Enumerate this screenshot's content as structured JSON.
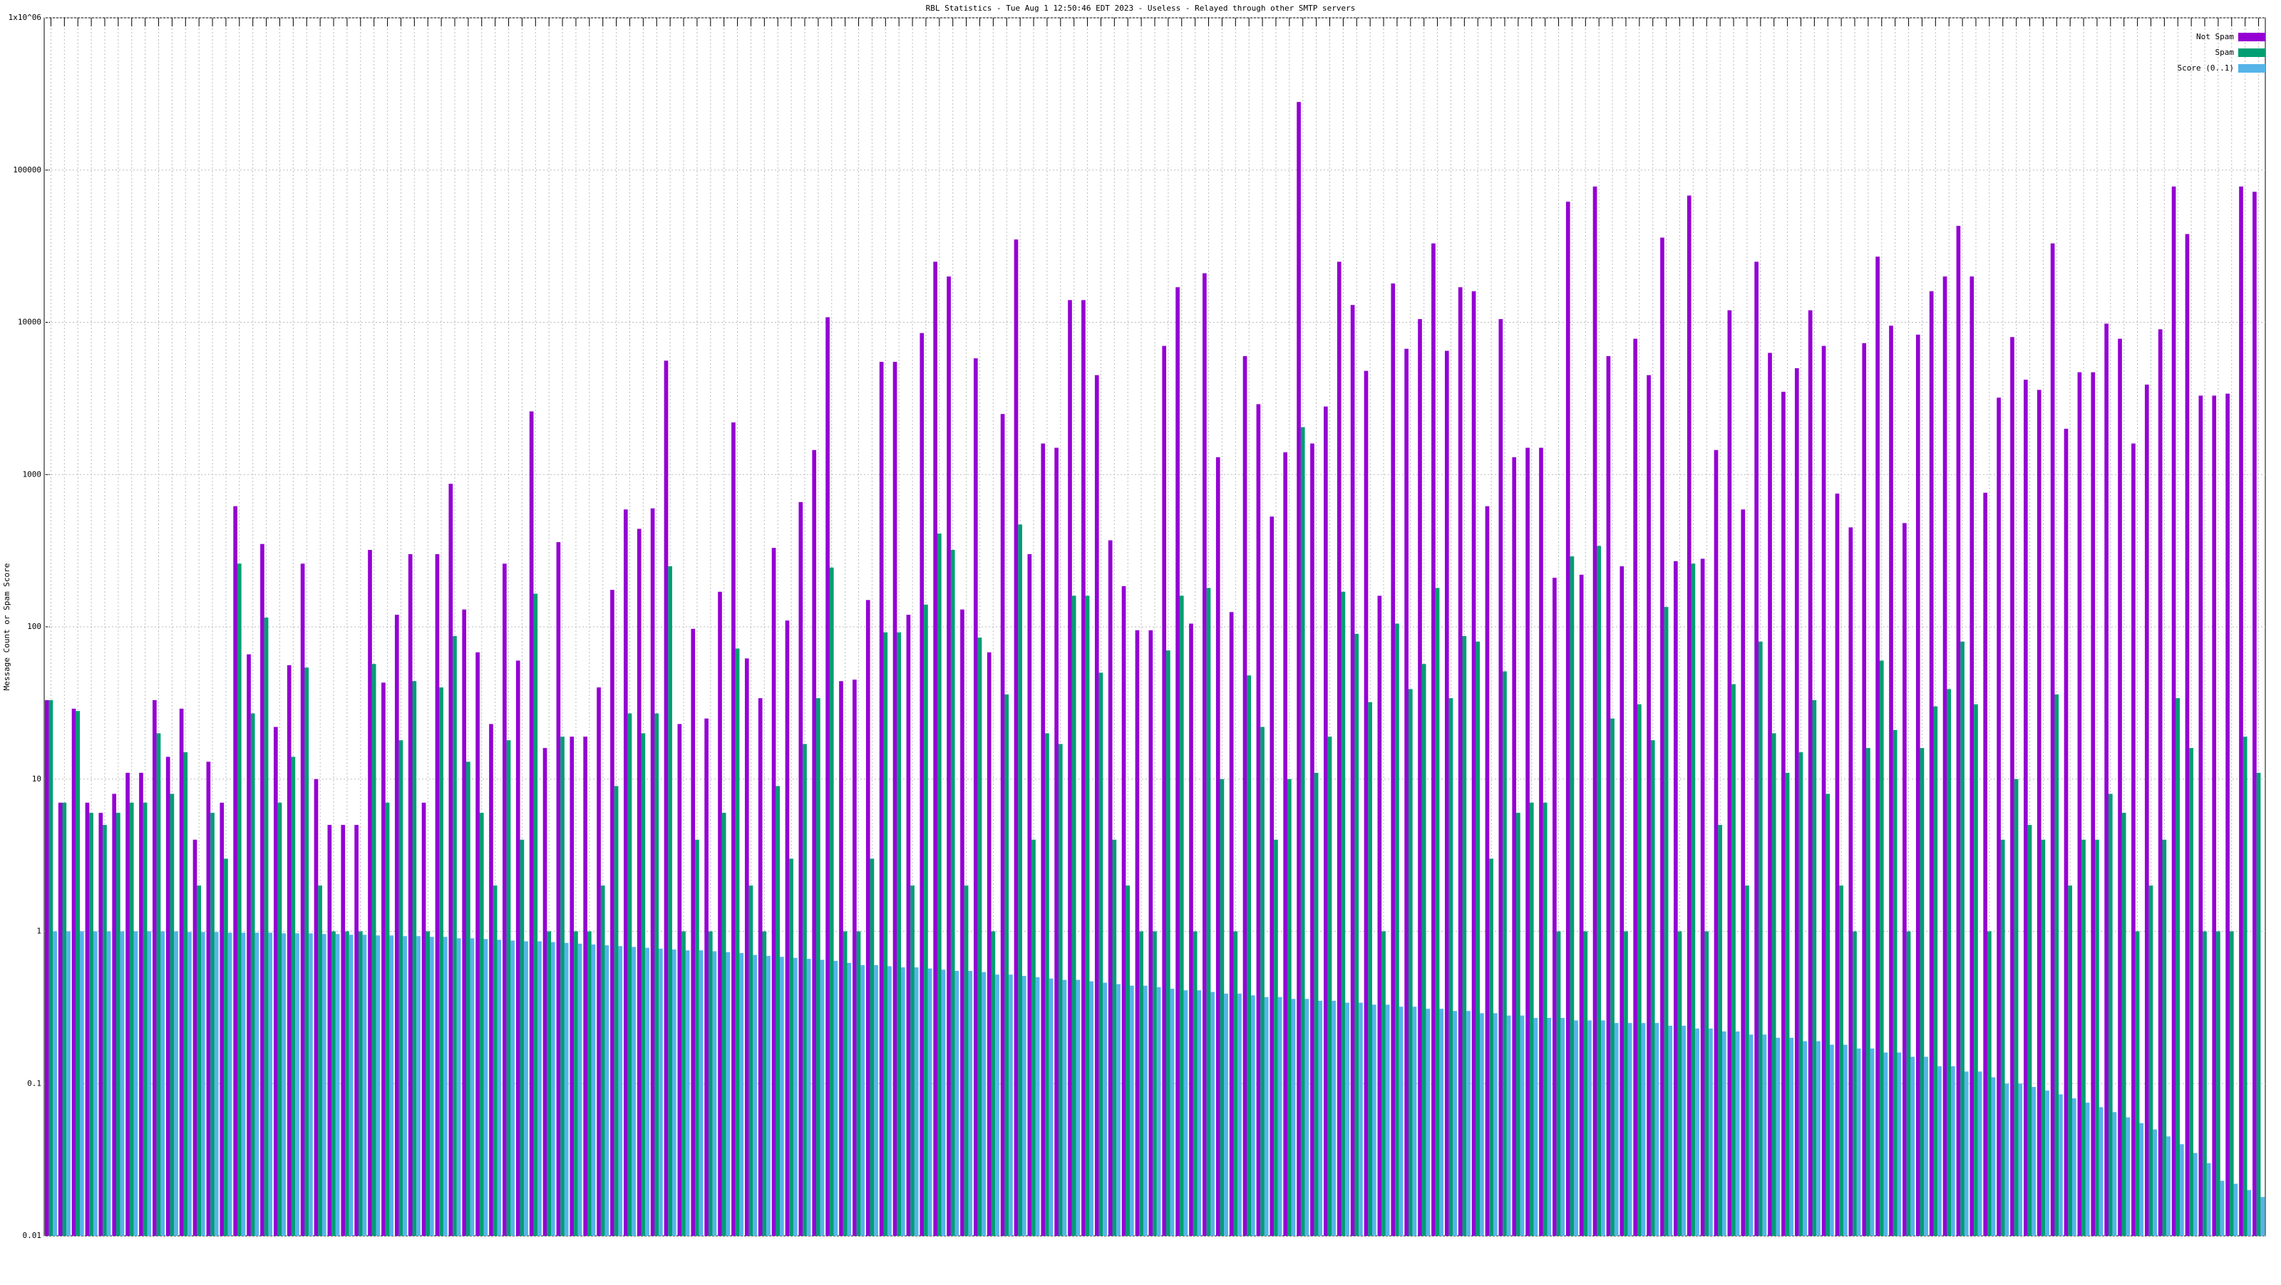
{
  "chart_data": {
    "type": "bar",
    "title": "RBL Statistics - Tue Aug  1 12:50:46 EDT 2023 - Useless - Relayed through other SMTP servers",
    "y_label": "Message Count or Spam Score",
    "log_y": true,
    "grid": true,
    "legend": "top-right",
    "ylim": [
      0.01,
      1000000
    ],
    "yticks": [
      0.01,
      0.1,
      1,
      10,
      100,
      1000,
      10000,
      100000,
      {
        "value": 1000000,
        "label": "1x10^06"
      }
    ],
    "categories": [
      null,
      null,
      null,
      null,
      null,
      null,
      null,
      null,
      null,
      null,
      null,
      null,
      null,
      null,
      null,
      null,
      null,
      null,
      null,
      null,
      null,
      null,
      null,
      null,
      null,
      null,
      null,
      null,
      null,
      null,
      null,
      null,
      null,
      null,
      null,
      null,
      null,
      null,
      null,
      null,
      null,
      null,
      null,
      null,
      null,
      null,
      null,
      null,
      null,
      null,
      null,
      null,
      null,
      null,
      null,
      null,
      null,
      null,
      null,
      null,
      null,
      null,
      null,
      null,
      null,
      null,
      null,
      null,
      null,
      null,
      null,
      null,
      null,
      null,
      null,
      null,
      null,
      null,
      null,
      null,
      null,
      null,
      null,
      null,
      null,
      null,
      null,
      null,
      null,
      null,
      null,
      null,
      null,
      null,
      null,
      null,
      null,
      null,
      null,
      null,
      null,
      null,
      null,
      null,
      null,
      null,
      null,
      null,
      null,
      null,
      null,
      null,
      null,
      null,
      null,
      null,
      null,
      null,
      null,
      null,
      null,
      null,
      null,
      null,
      null,
      null,
      null,
      null,
      null,
      null,
      null,
      null,
      null,
      null,
      null,
      null,
      null,
      null,
      null,
      null,
      null,
      null,
      null,
      null,
      null,
      null,
      null,
      null,
      null,
      null,
      null,
      null,
      null,
      null,
      null,
      null,
      null,
      null,
      null,
      null,
      null,
      null,
      null,
      null,
      null
    ],
    "series": [
      {
        "name": "Not Spam",
        "color": "#9400d3",
        "values": [
          33,
          7,
          29,
          7,
          6,
          8,
          11,
          11,
          33,
          14,
          29,
          4,
          13,
          7,
          620,
          66,
          350,
          22,
          56,
          260,
          10,
          5,
          5,
          5,
          320,
          43,
          120,
          300,
          7,
          300,
          870,
          130,
          68,
          23,
          260,
          60,
          2600,
          16,
          360,
          19,
          19,
          40,
          175,
          590,
          440,
          600,
          5600,
          23,
          97,
          25,
          170,
          2200,
          62,
          34,
          330,
          110,
          660,
          1450,
          10800,
          44,
          45,
          150,
          5500,
          5500,
          120,
          8500,
          25000,
          20000,
          130,
          5800,
          68,
          2500,
          35000,
          300,
          1600,
          1500,
          14000,
          14000,
          4500,
          370,
          185,
          95,
          95,
          7000,
          17000,
          105,
          21000,
          1300,
          125,
          6000,
          2900,
          530,
          1400,
          280000,
          1600,
          2800,
          25000,
          13000,
          4800,
          160,
          18000,
          6700,
          10500,
          33000,
          6500,
          17000,
          16000,
          620,
          10500,
          1300,
          1500,
          1500,
          210,
          62000,
          220,
          78000,
          6000,
          250,
          7800,
          4500,
          36000,
          270,
          68000,
          280,
          1450,
          12000,
          590,
          25000,
          6300,
          3500,
          5000,
          12000,
          7000,
          750,
          450,
          7300,
          27000,
          9500,
          480,
          8300,
          16000,
          20000,
          43000,
          20000,
          760,
          3200,
          8000,
          4200,
          3600,
          33000,
          2000,
          4700,
          4700,
          9800,
          7800,
          1600,
          3900,
          9000,
          78000,
          38000,
          3300,
          3300,
          3400,
          78000,
          72000
        ]
      },
      {
        "name": "Spam",
        "color": "#009e73",
        "values": [
          33,
          7,
          28,
          6,
          5,
          6,
          7,
          7,
          20,
          8,
          15,
          2,
          6,
          3,
          260,
          27,
          115,
          7,
          14,
          54,
          2,
          1,
          1,
          1,
          57,
          7,
          18,
          44,
          1,
          40,
          87,
          13,
          6,
          2,
          18,
          4,
          165,
          1,
          19,
          1,
          1,
          2,
          9,
          27,
          20,
          27,
          250,
          1,
          4,
          1,
          6,
          72,
          2,
          1,
          9,
          3,
          17,
          34,
          245,
          1,
          1,
          3,
          92,
          92,
          2,
          140,
          410,
          320,
          2,
          85,
          1,
          36,
          470,
          4,
          20,
          17,
          160,
          160,
          50,
          4,
          2,
          1,
          1,
          70,
          160,
          1,
          180,
          10,
          1,
          48,
          22,
          4,
          10,
          2050,
          11,
          19,
          170,
          90,
          32,
          1,
          105,
          39,
          57,
          180,
          34,
          87,
          80,
          3,
          51,
          6,
          7,
          7,
          1,
          290,
          1,
          340,
          25,
          1,
          31,
          18,
          135,
          1,
          260,
          1,
          5,
          42,
          2,
          80,
          20,
          11,
          15,
          33,
          8,
          2,
          1,
          16,
          60,
          21,
          1,
          16,
          30,
          39,
          80,
          31,
          1,
          4,
          10,
          5,
          4,
          36,
          2,
          4,
          4,
          8,
          6,
          1,
          2,
          4,
          34,
          16,
          1,
          1,
          1,
          19,
          11
        ]
      },
      {
        "name": "Score (0..1)",
        "color": "#56b4e9",
        "values": [
          1,
          1,
          1,
          1,
          1,
          1,
          1,
          1,
          1,
          1,
          0.99,
          0.99,
          0.99,
          0.98,
          0.98,
          0.98,
          0.98,
          0.97,
          0.97,
          0.97,
          0.96,
          0.96,
          0.95,
          0.95,
          0.94,
          0.94,
          0.93,
          0.93,
          0.92,
          0.92,
          0.9,
          0.9,
          0.89,
          0.88,
          0.87,
          0.86,
          0.86,
          0.85,
          0.84,
          0.83,
          0.82,
          0.81,
          0.8,
          0.79,
          0.78,
          0.77,
          0.76,
          0.75,
          0.75,
          0.74,
          0.73,
          0.72,
          0.7,
          0.69,
          0.68,
          0.67,
          0.66,
          0.65,
          0.64,
          0.62,
          0.6,
          0.6,
          0.59,
          0.58,
          0.58,
          0.57,
          0.56,
          0.55,
          0.55,
          0.54,
          0.52,
          0.52,
          0.51,
          0.5,
          0.49,
          0.48,
          0.48,
          0.47,
          0.46,
          0.45,
          0.44,
          0.44,
          0.43,
          0.42,
          0.41,
          0.41,
          0.4,
          0.39,
          0.39,
          0.38,
          0.37,
          0.37,
          0.36,
          0.36,
          0.35,
          0.35,
          0.34,
          0.34,
          0.33,
          0.33,
          0.32,
          0.32,
          0.31,
          0.31,
          0.3,
          0.3,
          0.29,
          0.29,
          0.28,
          0.28,
          0.27,
          0.27,
          0.27,
          0.26,
          0.26,
          0.26,
          0.25,
          0.25,
          0.25,
          0.25,
          0.24,
          0.24,
          0.23,
          0.23,
          0.22,
          0.22,
          0.21,
          0.21,
          0.2,
          0.2,
          0.19,
          0.19,
          0.18,
          0.18,
          0.17,
          0.17,
          0.16,
          0.16,
          0.15,
          0.15,
          0.13,
          0.13,
          0.12,
          0.12,
          0.11,
          0.1,
          0.1,
          0.095,
          0.09,
          0.085,
          0.08,
          0.075,
          0.07,
          0.065,
          0.06,
          0.055,
          0.05,
          0.045,
          0.04,
          0.035,
          0.03,
          0.023,
          0.022,
          0.02,
          0.018
        ]
      }
    ]
  }
}
